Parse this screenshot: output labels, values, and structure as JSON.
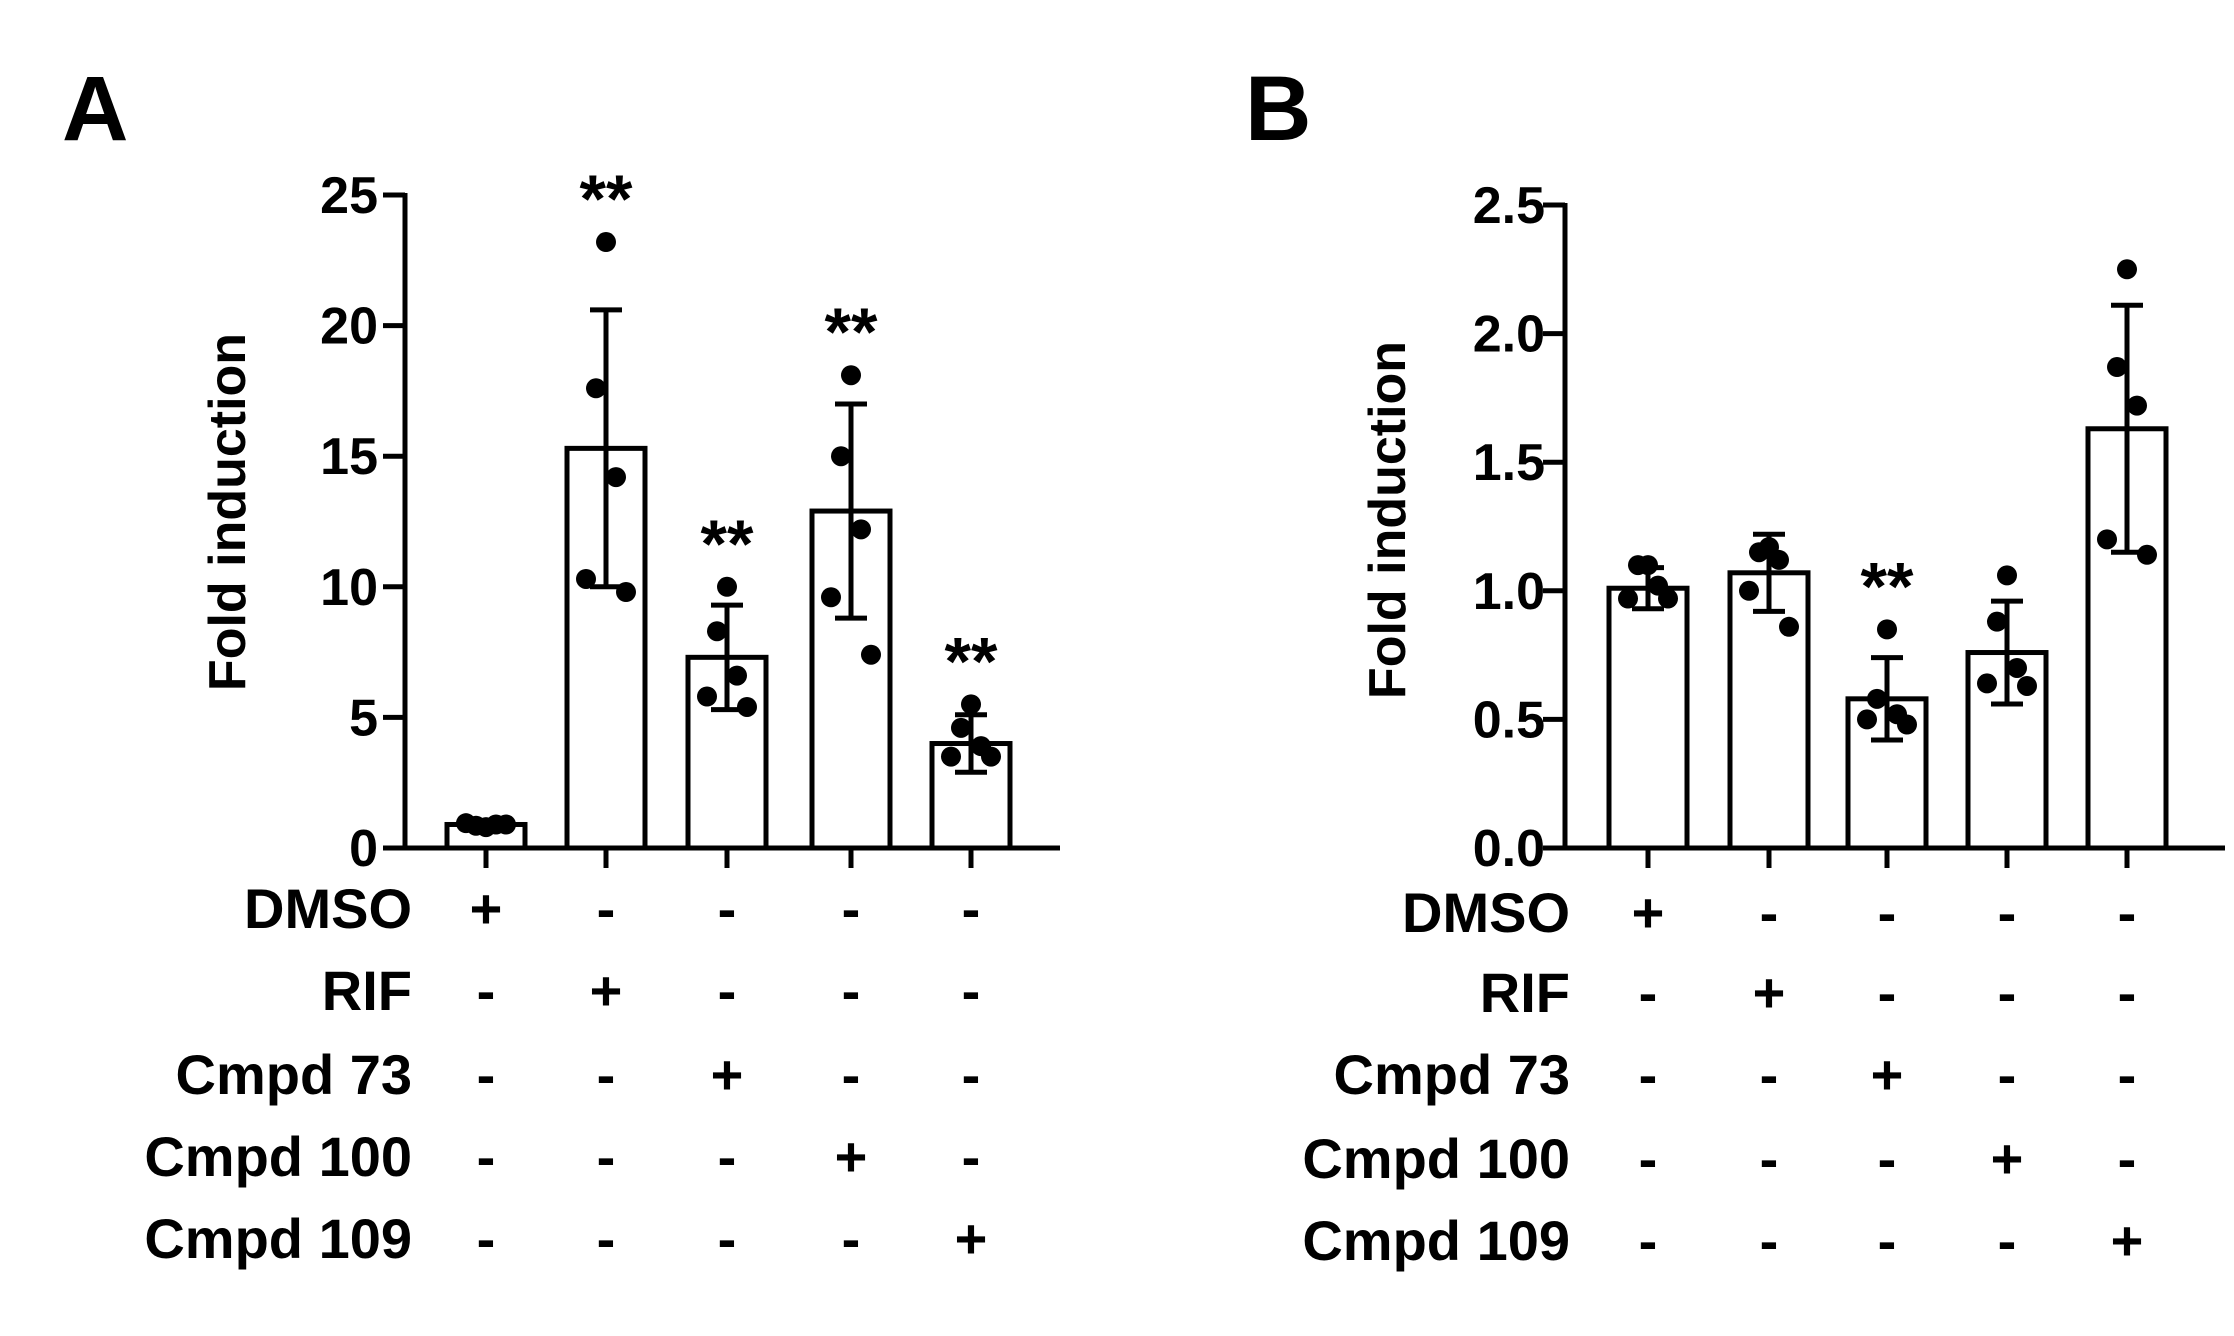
{
  "chart_data": [
    {
      "panel": "A",
      "type": "bar",
      "ylabel": "Fold induction",
      "ylim": [
        0,
        25
      ],
      "yticks": [
        "0",
        "5",
        "10",
        "15",
        "20",
        "25"
      ],
      "ytick_values": [
        0,
        5,
        10,
        15,
        20,
        25
      ],
      "values": [
        0.9,
        15.3,
        7.3,
        12.9,
        4.0
      ],
      "errors": [
        0.15,
        5.3,
        2.0,
        4.1,
        1.1
      ],
      "points": [
        [
          0.8,
          0.85,
          0.9,
          0.95,
          0.9
        ],
        [
          23.2,
          17.6,
          14.2,
          10.3,
          9.8
        ],
        [
          10.0,
          8.3,
          6.6,
          5.8,
          5.4
        ],
        [
          18.1,
          15.0,
          12.2,
          9.6,
          7.4
        ],
        [
          5.5,
          4.6,
          3.9,
          3.5,
          3.5
        ]
      ],
      "significance": [
        "",
        "**",
        "**",
        "**",
        "**"
      ],
      "treatment_rows": [
        {
          "label": "DMSO",
          "signs": [
            "+",
            "-",
            "-",
            "-",
            "-"
          ]
        },
        {
          "label": "RIF",
          "signs": [
            "-",
            "+",
            "-",
            "-",
            "-"
          ]
        },
        {
          "label": "Cmpd 73",
          "signs": [
            "-",
            "-",
            "+",
            "-",
            "-"
          ]
        },
        {
          "label": "Cmpd 100",
          "signs": [
            "-",
            "-",
            "-",
            "+",
            "-"
          ]
        },
        {
          "label": "Cmpd 109",
          "signs": [
            "-",
            "-",
            "-",
            "-",
            "+"
          ]
        }
      ]
    },
    {
      "panel": "B",
      "type": "bar",
      "ylabel": "Fold induction",
      "ylim": [
        0,
        2.5
      ],
      "yticks": [
        "0.0",
        "0.5",
        "1.0",
        "1.5",
        "2.0",
        "2.5"
      ],
      "ytick_values": [
        0,
        0.5,
        1.0,
        1.5,
        2.0,
        2.5
      ],
      "values": [
        1.01,
        1.07,
        0.58,
        0.76,
        1.63
      ],
      "errors": [
        0.08,
        0.15,
        0.16,
        0.2,
        0.48
      ],
      "points": [
        [
          1.1,
          1.1,
          1.02,
          0.97,
          0.97
        ],
        [
          1.17,
          1.15,
          1.12,
          1.0,
          0.86
        ],
        [
          0.85,
          0.58,
          0.52,
          0.5,
          0.48
        ],
        [
          1.06,
          0.88,
          0.7,
          0.64,
          0.63
        ],
        [
          2.25,
          1.87,
          1.72,
          1.2,
          1.14
        ]
      ],
      "significance": [
        "",
        "",
        "**",
        "",
        ""
      ],
      "treatment_rows": [
        {
          "label": "DMSO",
          "signs": [
            "+",
            "-",
            "-",
            "-",
            "-"
          ]
        },
        {
          "label": "RIF",
          "signs": [
            "-",
            "+",
            "-",
            "-",
            "-"
          ]
        },
        {
          "label": "Cmpd 73",
          "signs": [
            "-",
            "-",
            "+",
            "-",
            "-"
          ]
        },
        {
          "label": "Cmpd 100",
          "signs": [
            "-",
            "-",
            "-",
            "+",
            "-"
          ]
        },
        {
          "label": "Cmpd 109",
          "signs": [
            "-",
            "-",
            "-",
            "-",
            "+"
          ]
        }
      ]
    }
  ]
}
